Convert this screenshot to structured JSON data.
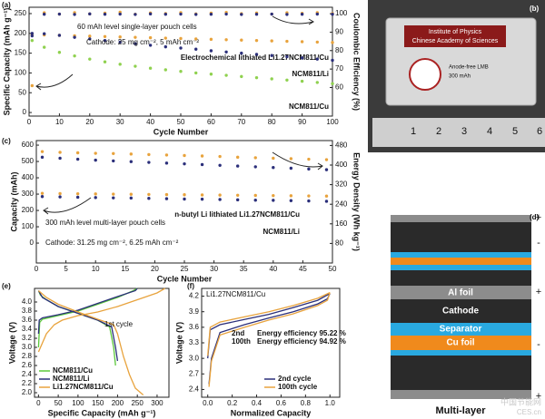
{
  "chart_data": [
    {
      "type": "scatter",
      "panel_label": "(a)",
      "xlabel": "Cycle Number",
      "ylabel": "Specific Capacity (mAh g⁻¹)",
      "y2label": "Coulombic Efficiency (%)",
      "x": [
        1,
        5,
        10,
        15,
        20,
        25,
        30,
        35,
        40,
        45,
        50,
        55,
        60,
        65,
        70,
        75,
        80,
        85,
        90,
        95,
        100
      ],
      "xlim": [
        0,
        100
      ],
      "xticks": [
        0,
        10,
        20,
        30,
        40,
        50,
        60,
        70,
        80,
        90,
        100
      ],
      "ylim": [
        -9,
        266
      ],
      "yticks": [
        0,
        50,
        100,
        150,
        200,
        250
      ],
      "y2lim": [
        44.5,
        103.5
      ],
      "y2ticks": [
        60,
        70,
        80,
        90,
        100
      ],
      "series": [
        {
          "name": "Electrochemical lithiated Li1.27NCM811/Cu",
          "color": "#e8a33d",
          "values": [
            197,
            196,
            195,
            194,
            193,
            192,
            191,
            190,
            189,
            188,
            187,
            186,
            185,
            184,
            183,
            182,
            181,
            180,
            179,
            178,
            177
          ]
        },
        {
          "name": "NCM811/Li",
          "color": "#2b2f7a",
          "values": [
            200,
            199,
            195,
            190,
            186,
            182,
            178,
            174,
            170,
            166,
            163,
            160,
            156,
            153,
            150,
            147,
            144,
            141,
            138,
            135,
            132
          ]
        },
        {
          "name": "NCM811/Cu",
          "color": "#8fd14f",
          "values": [
            182,
            165,
            152,
            143,
            135,
            128,
            122,
            117,
            112,
            108,
            104,
            100,
            97,
            94,
            91,
            88,
            85,
            82,
            79,
            76,
            73
          ]
        },
        {
          "color": "#e8a33d",
          "axis": "y2",
          "values": [
            61,
            100.5,
            99.8,
            100.6,
            99.9,
            100.3,
            100.8,
            99.7,
            100.4,
            100.1,
            100.6,
            99.9,
            100.3,
            100.7,
            100.0,
            100.4,
            99.8,
            100.5,
            100.2,
            100.6,
            100.1
          ]
        },
        {
          "color": "#2b2f7a",
          "axis": "y2",
          "values": [
            88,
            99.7,
            99.8,
            99.6,
            99.9,
            99.7,
            99.8,
            99.6,
            99.9,
            99.7,
            99.8,
            99.6,
            99.7,
            99.8,
            99.6,
            99.7,
            99.8,
            99.6,
            99.7,
            99.8,
            99.7
          ]
        }
      ],
      "annotations": [
        "60 mAh level single-layer pouch cells",
        "Cathode: 25 mg cm⁻², 5 mAh cm⁻²"
      ]
    },
    {
      "type": "scatter",
      "panel_label": "(c)",
      "xlabel": "Cycle Number",
      "ylabel": "Capacity (mAh)",
      "y2label": "Energy Density (Wh kg⁻¹)",
      "x": [
        1,
        4,
        7,
        10,
        13,
        16,
        19,
        22,
        25,
        28,
        31,
        34,
        37,
        40,
        43,
        46,
        49
      ],
      "xlim": [
        0,
        50
      ],
      "xticks": [
        0,
        5,
        10,
        15,
        20,
        25,
        30,
        35,
        40,
        45,
        50
      ],
      "ylim": [
        -122,
        628
      ],
      "yticks": [
        0,
        100,
        200,
        300,
        400,
        500,
        600
      ],
      "y2lim": [
        0,
        500
      ],
      "y2ticks": [
        80,
        160,
        240,
        320,
        400,
        480
      ],
      "series": [
        {
          "color": "#e8a33d",
          "axis": "y2",
          "values": [
            455,
            452,
            450,
            448,
            447,
            445,
            443,
            441,
            439,
            437,
            435,
            432,
            430,
            428,
            426,
            424,
            422
          ]
        },
        {
          "color": "#2b2f7a",
          "axis": "y2",
          "values": [
            432,
            428,
            424,
            420,
            417,
            414,
            411,
            408,
            405,
            402,
            399,
            396,
            393,
            390,
            387,
            384,
            381
          ]
        },
        {
          "name": "n-butyl Li lithiated Li1.27NCM811/Cu",
          "color": "#e8a33d",
          "values": [
            305,
            303,
            302,
            301,
            300,
            299,
            298,
            297,
            296,
            295,
            294,
            293,
            292,
            291,
            290,
            289,
            288
          ]
        },
        {
          "name": "NCM811/Li",
          "color": "#2b2f7a",
          "values": [
            285,
            283,
            281,
            279,
            277,
            276,
            274,
            272,
            270,
            269,
            267,
            265,
            263,
            262,
            260,
            258,
            256
          ]
        }
      ],
      "annotations": [
        "300 mAh level multi-layer pouch cells",
        "Cathode: 31.25 mg cm⁻², 6.25 mAh cm⁻²"
      ]
    },
    {
      "type": "line",
      "panel_label": "(e)",
      "xlabel": "Specific Capacity (mAh g⁻¹)",
      "ylabel": "Voltage (V)",
      "xlim": [
        -10,
        330
      ],
      "xticks": [
        0,
        50,
        100,
        150,
        200,
        250,
        300
      ],
      "ylim": [
        1.9,
        4.3
      ],
      "yticks": [
        {
          "value": 2,
          "label": "2.0"
        },
        2.2,
        2.4,
        2.6,
        2.8,
        {
          "value": 3,
          "label": "3.0"
        },
        3.2,
        3.4,
        3.6,
        3.8,
        {
          "value": 4,
          "label": "4.0"
        }
      ],
      "legend": "lower left",
      "series": [
        {
          "name": "NCM811/Cu",
          "color": "#5cc83b",
          "x": [
            0,
            3,
            10,
            50,
            100,
            150,
            200,
            240,
            250,
            null,
            0,
            5,
            20,
            50,
            100,
            150,
            180,
            190,
            195
          ],
          "values": [
            3.0,
            3.55,
            3.62,
            3.7,
            3.8,
            3.95,
            4.1,
            4.25,
            4.3,
            null,
            4.25,
            4.15,
            4.05,
            3.9,
            3.75,
            3.6,
            3.45,
            3.0,
            2.6
          ]
        },
        {
          "name": "NCM811/Li",
          "color": "#2b2f7a",
          "x": [
            0,
            2,
            10,
            50,
            100,
            150,
            200,
            245,
            250,
            null,
            0,
            10,
            50,
            100,
            150,
            185,
            195,
            200
          ],
          "values": [
            3.3,
            3.6,
            3.65,
            3.72,
            3.82,
            3.97,
            4.12,
            4.25,
            4.3,
            null,
            4.25,
            4.1,
            3.9,
            3.75,
            3.6,
            3.45,
            3.0,
            2.7
          ]
        },
        {
          "name": "Li1.27NCM811/Cu",
          "color": "#e8a33d",
          "x": [
            0,
            20,
            40,
            60,
            100,
            150,
            200,
            250,
            300,
            320,
            null,
            0,
            20,
            50,
            100,
            150,
            190,
            200,
            215,
            230,
            245,
            265
          ],
          "values": [
            2.9,
            3.3,
            3.5,
            3.6,
            3.7,
            3.78,
            3.9,
            4.05,
            4.2,
            4.3,
            null,
            4.25,
            4.1,
            3.95,
            3.78,
            3.62,
            3.5,
            3.3,
            2.8,
            2.4,
            2.1,
            1.95
          ]
        }
      ],
      "annotations": [
        "1st cycle"
      ]
    },
    {
      "type": "line",
      "panel_label": "(f)",
      "xlabel": "Normalized Capacity",
      "ylabel": "Voltage (V)",
      "xlim": [
        -0.05,
        1.08
      ],
      "xticks": [
        {
          "value": 0,
          "label": "0.0"
        },
        0.2,
        0.4,
        0.6,
        0.8,
        {
          "value": 1,
          "label": "1.0"
        }
      ],
      "ylim": [
        2.25,
        4.35
      ],
      "yticks": [
        2.4,
        2.7,
        {
          "value": 3,
          "label": "3.0"
        },
        3.3,
        3.6,
        3.9,
        4.2
      ],
      "legend": "lower right",
      "series": [
        {
          "name": "2nd cycle",
          "color": "#2b2f7a",
          "x": [
            0,
            0.02,
            0.1,
            0.3,
            0.5,
            0.7,
            0.9,
            1.0,
            null,
            1.0,
            0.98,
            0.9,
            0.7,
            0.5,
            0.3,
            0.1,
            0.03,
            0.01
          ],
          "values": [
            3.0,
            3.55,
            3.65,
            3.75,
            3.85,
            3.98,
            4.12,
            4.25,
            null,
            4.25,
            4.15,
            4.05,
            3.9,
            3.78,
            3.65,
            3.5,
            3.0,
            2.5
          ]
        },
        {
          "name": "100th cycle",
          "color": "#e8a33d",
          "x": [
            0,
            0.02,
            0.1,
            0.3,
            0.5,
            0.7,
            0.9,
            1.0,
            null,
            1.0,
            0.98,
            0.9,
            0.7,
            0.5,
            0.3,
            0.1,
            0.03,
            0.01
          ],
          "values": [
            3.05,
            3.6,
            3.7,
            3.8,
            3.9,
            4.02,
            4.16,
            4.27,
            null,
            4.27,
            4.12,
            4.02,
            3.86,
            3.74,
            3.6,
            3.45,
            2.95,
            2.45
          ]
        }
      ],
      "annotations": [
        {
          "text": "Li1.27NCM811/Cu"
        },
        {
          "text": "2nd",
          "color": "#2b2f7a"
        },
        {
          "text": "100th",
          "color": "#e8a33d"
        },
        {
          "text": "Energy efficiency 95.22 %",
          "color": "#2b2f7a"
        },
        {
          "text": "Energy efficiency 94.92 %",
          "color": "#e8a33d"
        }
      ]
    }
  ],
  "photo": {
    "panel_label": "(b)",
    "label_lines": [
      "Institute of Physics",
      "Chinese Academy of Sciences"
    ],
    "cell_text": [
      "Anode-free LMB",
      "300 mAh"
    ],
    "ruler": [
      "1",
      "2",
      "3",
      "4",
      "5",
      "6"
    ]
  },
  "schematic": {
    "panel_label": "(d)",
    "layers": [
      "Al foil",
      "Cathode",
      "Separator",
      "Cu foil"
    ],
    "title": "Multi-layer",
    "signs": [
      "+",
      "-",
      "+",
      "-",
      "+"
    ]
  },
  "watermark": [
    "中国节能网",
    "CES.cn"
  ]
}
